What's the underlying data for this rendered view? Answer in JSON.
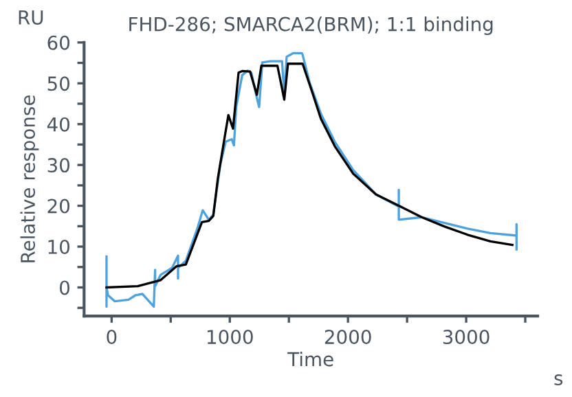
{
  "chart_data": {
    "type": "line",
    "title": "FHD-286; SMARCA2(BRM); 1:1 binding",
    "xlabel": "Time",
    "ylabel": "Relative response",
    "annotations": [
      "RU",
      "s"
    ],
    "series": [
      {
        "color": "#4ea3de",
        "x": [
          -43,
          -43,
          -43,
          -31,
          27,
          143,
          202,
          260,
          357,
          368,
          368,
          368,
          415,
          512,
          562,
          562,
          562,
          628,
          725,
          771,
          822,
          860,
          919,
          965,
          1016,
          1035,
          1054,
          1105,
          1151,
          1182,
          1229,
          1248,
          1275,
          1345,
          1442,
          1461,
          1481,
          1539,
          1609,
          1616,
          1674,
          1771,
          1888,
          2043,
          2236,
          2430,
          2430,
          2430,
          2624,
          2818,
          3012,
          3205,
          3426,
          3426,
          3426
        ],
        "values": [
          7.6,
          -4.7,
          0,
          -1.9,
          -3.4,
          -3,
          -1.9,
          -1.6,
          -4.7,
          4.3,
          0.9,
          0.3,
          3.1,
          4.8,
          7.8,
          2.2,
          4.8,
          6.5,
          14.4,
          18.9,
          16.6,
          17.8,
          30,
          35.7,
          36.3,
          34.8,
          44.2,
          52,
          53.1,
          52.6,
          46.4,
          44.2,
          55.1,
          55.4,
          55.4,
          47,
          56.5,
          57.4,
          57.4,
          57,
          50.3,
          42.5,
          35.7,
          28.8,
          22.8,
          19.8,
          23.9,
          16.6,
          17.2,
          15.8,
          14.4,
          13.3,
          12.7,
          15.5,
          9.3
        ]
      },
      {
        "color": "#000000",
        "x": [
          -43,
          221,
          415,
          550,
          628,
          764,
          822,
          860,
          899,
          957,
          988,
          1027,
          1074,
          1105,
          1171,
          1229,
          1267,
          1403,
          1461,
          1492,
          1616,
          1694,
          1771,
          1888,
          2043,
          2236,
          2430,
          2624,
          2818,
          3012,
          3205,
          3391
        ],
        "values": [
          0,
          0.3,
          1.8,
          5.2,
          5.6,
          16,
          16.3,
          17.5,
          26.7,
          36.9,
          42.2,
          38.9,
          52.6,
          53,
          52.9,
          47.2,
          54.3,
          54.3,
          46,
          54.8,
          54.8,
          48.1,
          41.3,
          34.6,
          27.9,
          22.8,
          20,
          17.2,
          14.9,
          12.9,
          11.3,
          10.4
        ]
      }
    ],
    "xlim": [
      -233,
      3605
    ],
    "ylim": [
      -7,
      60
    ],
    "xticks": [
      0,
      {
        "value": 500,
        "label": null
      },
      1000,
      {
        "value": 1500,
        "label": null
      },
      2000,
      {
        "value": 2500,
        "label": null
      },
      3000,
      {
        "value": 3500,
        "label": null
      }
    ],
    "yticks": [
      {
        "value": -5,
        "label": null
      },
      0,
      {
        "value": 5,
        "label": null
      },
      10,
      {
        "value": 15,
        "label": null
      },
      20,
      {
        "value": 25,
        "label": null
      },
      30,
      {
        "value": 35,
        "label": null
      },
      40,
      {
        "value": 45,
        "label": null
      },
      50,
      {
        "value": 55,
        "label": null
      },
      60
    ],
    "grid": false,
    "marker": "none",
    "line_style": "solid"
  }
}
